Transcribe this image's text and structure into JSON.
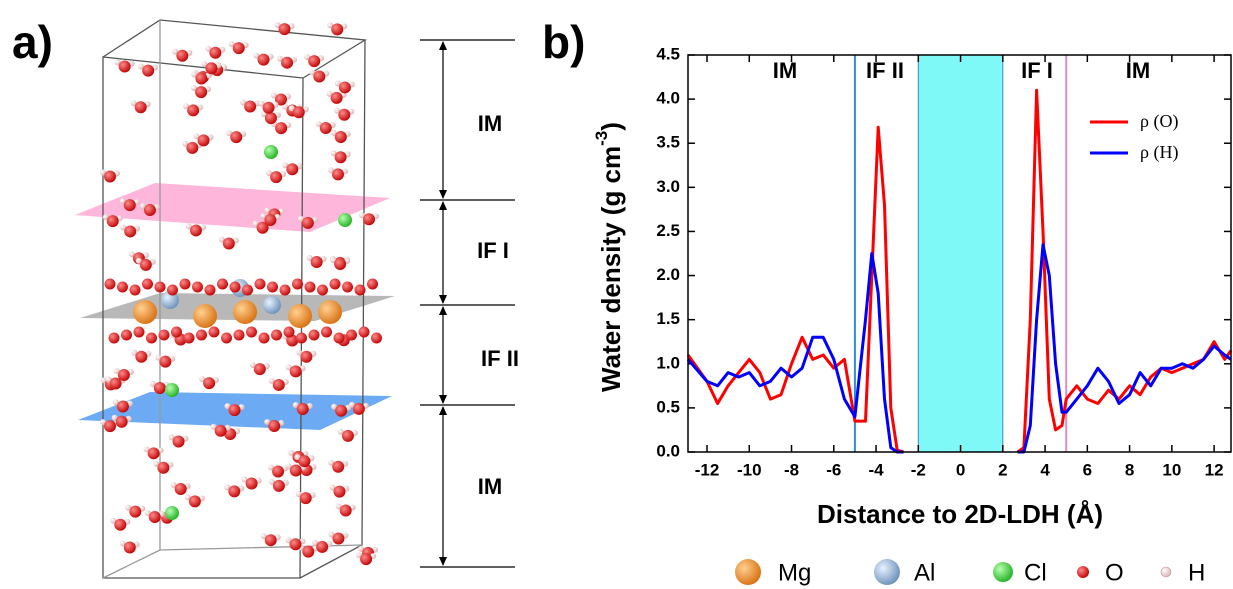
{
  "panel_a": {
    "label": "a)",
    "regions": [
      "IM",
      "IF I",
      "IF II",
      "IM"
    ]
  },
  "atom_legend": [
    "Mg",
    "Al",
    "Cl",
    "O",
    "H"
  ],
  "chart_data": {
    "type": "line",
    "panel_label": "b)",
    "xlabel": "Distance to 2D-LDH (Å)",
    "ylabel_parts": [
      "Water density (g cm",
      "-3",
      ")"
    ],
    "xlim": [
      -12.9,
      12.8
    ],
    "ylim": [
      0,
      4.5
    ],
    "xticks": [
      -12,
      -10,
      -8,
      -6,
      -4,
      -2,
      0,
      2,
      4,
      6,
      8,
      10,
      12
    ],
    "yticks": [
      {
        "value": 0,
        "label": "0.0"
      },
      {
        "value": 0.5,
        "label": "0.5"
      },
      {
        "value": 1,
        "label": "1.0"
      },
      {
        "value": 1.5,
        "label": "1.5"
      },
      {
        "value": 2,
        "label": "2.0"
      },
      {
        "value": 2.5,
        "label": "2.5"
      },
      {
        "value": 3,
        "label": "3.0"
      },
      {
        "value": 3.5,
        "label": "3.5"
      },
      {
        "value": 4,
        "label": "4.0"
      },
      {
        "value": 4.5,
        "label": "4.5"
      }
    ],
    "shaded_range": [
      -2,
      2
    ],
    "shaded_color": "#7ff8f8",
    "boundaries": [
      {
        "x": -5,
        "color": "#2a8fd8"
      },
      {
        "x": 5,
        "color": "#e48ac8"
      }
    ],
    "regions": [
      "IM",
      "IF II",
      "IF I",
      "IM"
    ],
    "legend_position": "upper right",
    "x": [
      -12.9,
      -12,
      -11.5,
      -11,
      -10.5,
      -10,
      -9.5,
      -9,
      -8.5,
      -8,
      -7.5,
      -7,
      -6.5,
      -6,
      -5.5,
      -5,
      -4.5,
      -4.2,
      -3.9,
      -3.6,
      -3.3,
      -3,
      -2.7,
      0,
      2.7,
      3,
      3.3,
      3.6,
      3.9,
      4.2,
      4.5,
      4.8,
      5,
      5.5,
      6,
      6.5,
      7,
      7.5,
      8,
      8.5,
      9,
      9.5,
      10,
      10.5,
      11,
      11.5,
      12,
      12.5,
      12.8
    ],
    "series": [
      {
        "name": "ρ (O)",
        "color": "#ff0000",
        "values": [
          1.1,
          0.8,
          0.55,
          0.75,
          0.9,
          1.05,
          0.9,
          0.6,
          0.65,
          1.0,
          1.3,
          1.05,
          1.1,
          0.95,
          1.05,
          0.35,
          0.35,
          2.0,
          3.68,
          2.8,
          0.5,
          0.02,
          0,
          null,
          0,
          0.05,
          1.5,
          4.1,
          2.5,
          0.6,
          0.25,
          0.3,
          0.6,
          0.75,
          0.6,
          0.55,
          0.7,
          0.6,
          0.75,
          0.65,
          0.85,
          0.95,
          0.9,
          0.95,
          1.0,
          1.05,
          1.25,
          1.05,
          1.15
        ]
      },
      {
        "name": "ρ (H)",
        "color": "#0000ff",
        "values": [
          1.05,
          0.8,
          0.75,
          0.9,
          0.85,
          0.9,
          0.75,
          0.8,
          0.95,
          0.85,
          0.95,
          1.3,
          1.3,
          1.05,
          0.6,
          0.4,
          1.5,
          2.25,
          1.8,
          0.6,
          0.05,
          0,
          0,
          null,
          0,
          0,
          0.3,
          1.5,
          2.35,
          2.0,
          1.0,
          0.45,
          0.45,
          0.6,
          0.75,
          0.95,
          0.8,
          0.55,
          0.65,
          0.9,
          0.75,
          0.95,
          0.95,
          1.0,
          0.95,
          1.05,
          1.2,
          1.1,
          1.05
        ]
      }
    ]
  }
}
